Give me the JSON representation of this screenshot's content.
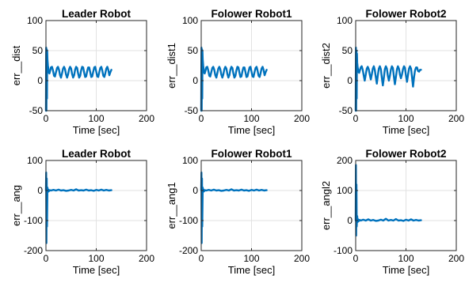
{
  "chart_data": [
    {
      "type": "line",
      "title": "Leader Robot",
      "xlabel": "Time [sec]",
      "ylabel": "err__dist",
      "xlim": [
        0,
        200
      ],
      "ylim": [
        -50,
        100
      ],
      "xticks": [
        0,
        100,
        200
      ],
      "yticks": [
        -50,
        0,
        50,
        100
      ],
      "grid": true,
      "color": "#0072BD",
      "series": [
        {
          "x": [
            0,
            0.5,
            1,
            1.5,
            2,
            2.5,
            3,
            4,
            5,
            6,
            7,
            8,
            10,
            12,
            14,
            16,
            18,
            20,
            22,
            24,
            26,
            28,
            30,
            32,
            34,
            36,
            38,
            40,
            42,
            44,
            46,
            48,
            50,
            52,
            54,
            56,
            58,
            60,
            62,
            64,
            66,
            68,
            70,
            72,
            74,
            76,
            78,
            80,
            82,
            84,
            86,
            88,
            90,
            92,
            94,
            96,
            98,
            100,
            102,
            104,
            106,
            108,
            110,
            112,
            114,
            116,
            118,
            120,
            122,
            124,
            126,
            128,
            130
          ],
          "y": [
            -50,
            55,
            -50,
            52,
            -30,
            48,
            35,
            25,
            18,
            13,
            12,
            15,
            22,
            23,
            17,
            8,
            7,
            14,
            21,
            23,
            18,
            9,
            5,
            12,
            20,
            23,
            19,
            10,
            5,
            10,
            19,
            23,
            20,
            11,
            5,
            9,
            18,
            23,
            21,
            12,
            5,
            8,
            17,
            23,
            22,
            13,
            6,
            7,
            16,
            22,
            22,
            14,
            6,
            7,
            15,
            22,
            23,
            15,
            7,
            6,
            14,
            21,
            23,
            17,
            8,
            6,
            12,
            20,
            23,
            18,
            9,
            14,
            18
          ]
        }
      ]
    },
    {
      "type": "line",
      "title": "Folower Robot1",
      "xlabel": "Time [sec]",
      "ylabel": "err__dist1",
      "xlim": [
        0,
        200
      ],
      "ylim": [
        -50,
        100
      ],
      "xticks": [
        0,
        100,
        200
      ],
      "yticks": [
        -50,
        0,
        50,
        100
      ],
      "grid": true,
      "color": "#0072BD",
      "series": [
        {
          "x": [
            0,
            0.5,
            1,
            1.5,
            2,
            2.5,
            3,
            4,
            5,
            6,
            7,
            8,
            10,
            12,
            14,
            16,
            18,
            20,
            22,
            24,
            26,
            28,
            30,
            32,
            34,
            36,
            38,
            40,
            42,
            44,
            46,
            48,
            50,
            52,
            54,
            56,
            58,
            60,
            62,
            64,
            66,
            68,
            70,
            72,
            74,
            76,
            78,
            80,
            82,
            84,
            86,
            88,
            90,
            92,
            94,
            96,
            98,
            100,
            102,
            104,
            106,
            108,
            110,
            112,
            114,
            116,
            118,
            120,
            122,
            124,
            126,
            128,
            130
          ],
          "y": [
            -50,
            55,
            -50,
            52,
            -30,
            48,
            35,
            25,
            18,
            13,
            12,
            15,
            22,
            23,
            17,
            8,
            7,
            14,
            21,
            23,
            18,
            9,
            5,
            12,
            20,
            23,
            19,
            10,
            5,
            10,
            19,
            23,
            20,
            11,
            5,
            9,
            18,
            23,
            21,
            12,
            5,
            8,
            17,
            23,
            22,
            13,
            6,
            7,
            16,
            22,
            22,
            14,
            6,
            7,
            15,
            22,
            23,
            15,
            7,
            6,
            14,
            21,
            23,
            17,
            8,
            6,
            12,
            20,
            23,
            18,
            9,
            14,
            18
          ]
        }
      ]
    },
    {
      "type": "line",
      "title": "Folower Robot2",
      "xlabel": "Time [sec]",
      "ylabel": "err__dist2",
      "xlim": [
        0,
        200
      ],
      "ylim": [
        -50,
        100
      ],
      "xticks": [
        0,
        100,
        200
      ],
      "yticks": [
        -50,
        0,
        50,
        100
      ],
      "grid": true,
      "color": "#0072BD",
      "series": [
        {
          "x": [
            0,
            0.5,
            1,
            1.5,
            2,
            2.5,
            3,
            4,
            5,
            6,
            7,
            8,
            10,
            12,
            14,
            16,
            18,
            20,
            22,
            24,
            26,
            28,
            30,
            32,
            34,
            36,
            38,
            40,
            42,
            44,
            46,
            48,
            50,
            52,
            54,
            56,
            58,
            60,
            62,
            64,
            66,
            68,
            70,
            72,
            74,
            76,
            78,
            80,
            82,
            84,
            86,
            88,
            90,
            92,
            94,
            96,
            98,
            100,
            102,
            104,
            106,
            108,
            110,
            112,
            114,
            116,
            118,
            120,
            122,
            124,
            126,
            128,
            130
          ],
          "y": [
            -50,
            55,
            -50,
            50,
            -30,
            45,
            30,
            22,
            18,
            14,
            13,
            16,
            22,
            24,
            18,
            8,
            0,
            10,
            20,
            23,
            19,
            10,
            2,
            10,
            20,
            24,
            18,
            6,
            -5,
            8,
            20,
            24,
            19,
            5,
            -8,
            5,
            19,
            24,
            20,
            8,
            0,
            8,
            18,
            24,
            21,
            6,
            -6,
            6,
            19,
            24,
            20,
            10,
            4,
            10,
            19,
            24,
            21,
            8,
            -2,
            9,
            20,
            24,
            20,
            6,
            -10,
            6,
            17,
            22,
            22,
            16,
            15,
            18,
            18
          ]
        }
      ]
    },
    {
      "type": "line",
      "title": "Leader Robot",
      "xlabel": "Time [sec]",
      "ylabel": "err__ang",
      "xlim": [
        0,
        200
      ],
      "ylim": [
        -200,
        100
      ],
      "xticks": [
        0,
        100,
        200
      ],
      "yticks": [
        -200,
        -100,
        0,
        100
      ],
      "grid": true,
      "color": "#0072BD",
      "series": [
        {
          "x": [
            0,
            0.5,
            1,
            1.5,
            2,
            3,
            4,
            5,
            6,
            8,
            10,
            15,
            20,
            25,
            30,
            35,
            40,
            45,
            50,
            55,
            60,
            65,
            70,
            75,
            80,
            85,
            90,
            95,
            100,
            105,
            110,
            115,
            120,
            125,
            130
          ],
          "y": [
            0,
            60,
            -175,
            40,
            -120,
            10,
            -5,
            3,
            -2,
            1,
            0,
            2,
            0,
            3,
            0,
            1,
            -1,
            0,
            2,
            0,
            4,
            0,
            1,
            0,
            3,
            0,
            1,
            -1,
            2,
            0,
            3,
            0,
            2,
            0,
            1
          ]
        }
      ]
    },
    {
      "type": "line",
      "title": "Folower Robot1",
      "xlabel": "Time [sec]",
      "ylabel": "err__ang1",
      "xlim": [
        0,
        200
      ],
      "ylim": [
        -200,
        100
      ],
      "xticks": [
        0,
        100,
        200
      ],
      "yticks": [
        -200,
        -100,
        0,
        100
      ],
      "grid": true,
      "color": "#0072BD",
      "series": [
        {
          "x": [
            0,
            0.5,
            1,
            1.5,
            2,
            3,
            4,
            5,
            6,
            8,
            10,
            15,
            20,
            25,
            30,
            35,
            40,
            45,
            50,
            55,
            60,
            65,
            70,
            75,
            80,
            85,
            90,
            95,
            100,
            105,
            110,
            115,
            120,
            125,
            130
          ],
          "y": [
            0,
            60,
            -175,
            40,
            -120,
            10,
            -5,
            3,
            -2,
            1,
            0,
            2,
            0,
            3,
            0,
            1,
            -1,
            0,
            2,
            0,
            4,
            0,
            1,
            0,
            3,
            0,
            1,
            -1,
            2,
            0,
            3,
            0,
            2,
            0,
            1
          ]
        }
      ]
    },
    {
      "type": "line",
      "title": "Folower Robot2",
      "xlabel": "Time [sec]",
      "ylabel": "err__angl2",
      "xlim": [
        0,
        200
      ],
      "ylim": [
        -100,
        200
      ],
      "xticks": [
        0,
        100,
        200
      ],
      "yticks": [
        -100,
        0,
        100,
        200
      ],
      "grid": true,
      "color": "#0072BD",
      "series": [
        {
          "x": [
            0,
            0.5,
            1,
            1.5,
            2,
            3,
            4,
            5,
            6,
            8,
            10,
            15,
            20,
            25,
            30,
            35,
            40,
            45,
            50,
            55,
            60,
            65,
            70,
            75,
            80,
            85,
            90,
            95,
            100,
            105,
            110,
            115,
            120,
            125,
            130
          ],
          "y": [
            0,
            185,
            -50,
            120,
            -20,
            15,
            -5,
            4,
            -2,
            2,
            0,
            3,
            0,
            4,
            0,
            2,
            -1,
            0,
            3,
            0,
            6,
            0,
            2,
            0,
            5,
            0,
            1,
            -1,
            3,
            0,
            4,
            0,
            2,
            0,
            1
          ]
        }
      ]
    }
  ]
}
